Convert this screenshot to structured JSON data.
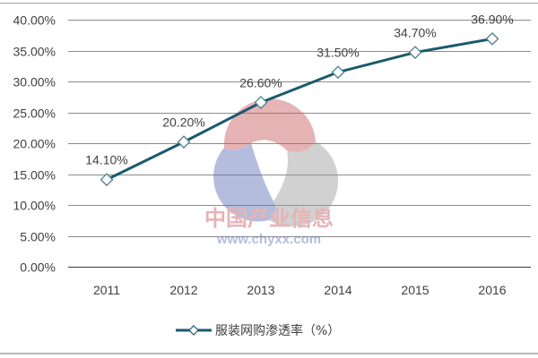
{
  "chart_data": {
    "type": "line",
    "title": "",
    "xlabel": "",
    "ylabel": "",
    "categories": [
      "2011",
      "2012",
      "2013",
      "2014",
      "2015",
      "2016"
    ],
    "series": [
      {
        "name": "服装网购渗透率（%）",
        "values": [
          14.1,
          20.2,
          26.6,
          31.5,
          34.7,
          36.9
        ],
        "labels": [
          "14.10%",
          "20.20%",
          "26.60%",
          "31.50%",
          "34.70%",
          "36.90%"
        ],
        "color": "#1a5a6e",
        "marker": "diamond"
      }
    ],
    "ylim": [
      0,
      40
    ],
    "yticks": [
      "0.00%",
      "5.00%",
      "10.00%",
      "15.00%",
      "20.00%",
      "25.00%",
      "30.00%",
      "35.00%",
      "40.00%"
    ],
    "grid": true,
    "legend_position": "bottom"
  },
  "legend": {
    "label": "服装网购渗透率（%）"
  },
  "watermark": {
    "text_cn": "中国产业信息",
    "text_url": "www.chyxx.com"
  },
  "colors": {
    "line": "#1a5a6e",
    "grid": "#8c8c8c",
    "axis_text": "#404040",
    "watermark_red": "#c8585c",
    "watermark_blue": "#5a6eb4",
    "watermark_gray": "#b4b4b4"
  }
}
